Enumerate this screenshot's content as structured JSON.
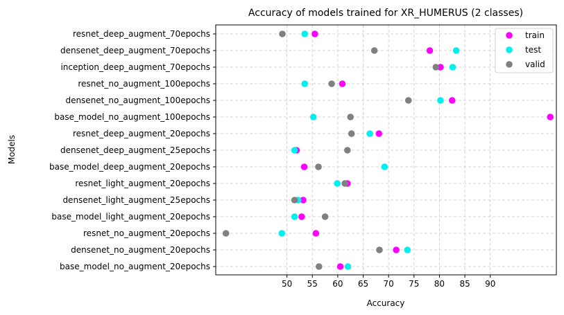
{
  "chart_data": {
    "type": "scatter",
    "title": "Accuracy of models trained for XR_HUMERUS (2 classes)",
    "xlabel": "Accuracy",
    "ylabel": "Models",
    "xlim": [
      36.0,
      103.0
    ],
    "xticks": [
      50,
      55,
      60,
      65,
      70,
      75,
      80,
      85,
      90
    ],
    "grid": true,
    "legend_position": "top-right",
    "categories": [
      "base_model_no_augment_20epochs",
      "densenet_no_augment_20epochs",
      "resnet_no_augment_20epochs",
      "base_model_light_augment_20epochs",
      "densenet_light_augment_25epochs",
      "resnet_light_augment_20epochs",
      "base_model_deep_augment_20epochs",
      "densenet_deep_augment_25epochs",
      "resnet_deep_augment_20epochs",
      "base_model_no_augment_100epochs",
      "densenet_no_augment_100epochs",
      "resnet_no_augment_100epochs",
      "inception_deep_augment_70epochs",
      "densenet_deep_augment_70epochs",
      "resnet_deep_augment_70epochs"
    ],
    "series": [
      {
        "name": "train",
        "color": "#ff00ff",
        "values": [
          60.5,
          71.5,
          55.7,
          52.9,
          53.2,
          61.9,
          53.4,
          51.9,
          68.1,
          101.8,
          82.5,
          60.9,
          80.2,
          78.1,
          55.5
        ]
      },
      {
        "name": "test",
        "color": "#00f0f0",
        "values": [
          62.0,
          73.7,
          49.0,
          51.5,
          52.2,
          59.9,
          69.2,
          51.5,
          66.3,
          55.2,
          80.2,
          53.5,
          82.6,
          83.3,
          53.5
        ]
      },
      {
        "name": "valid",
        "color": "#808080",
        "values": [
          56.3,
          68.2,
          38.0,
          57.5,
          51.5,
          61.4,
          56.2,
          61.9,
          62.7,
          62.5,
          73.9,
          58.8,
          79.3,
          67.2,
          49.1
        ]
      }
    ]
  }
}
